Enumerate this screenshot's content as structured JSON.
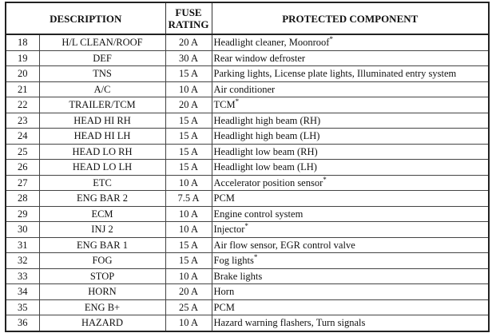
{
  "header": {
    "description": "DESCRIPTION",
    "rating": [
      "FUSE",
      "RATING"
    ],
    "component": "PROTECTED COMPONENT"
  },
  "rows": [
    {
      "no": 18,
      "description": "H/L CLEAN/ROOF",
      "rating": "20 A",
      "component": "Headlight cleaner, Moonroof",
      "note": "*"
    },
    {
      "no": 19,
      "description": "DEF",
      "rating": "30 A",
      "component": "Rear window defroster"
    },
    {
      "no": 20,
      "description": "TNS",
      "rating": "15 A",
      "component": "Parking lights, License plate lights, Illuminated entry system"
    },
    {
      "no": 21,
      "description": "A/C",
      "rating": "10 A",
      "component": "Air conditioner"
    },
    {
      "no": 22,
      "description": "TRAILER/TCM",
      "rating": "20 A",
      "component": "TCM",
      "note": "*"
    },
    {
      "no": 23,
      "description": "HEAD HI RH",
      "rating": "15 A",
      "component": "Headlight high beam (RH)"
    },
    {
      "no": 24,
      "description": "HEAD HI LH",
      "rating": "15 A",
      "component": "Headlight high beam (LH)"
    },
    {
      "no": 25,
      "description": "HEAD LO RH",
      "rating": "15 A",
      "component": "Headlight low beam (RH)"
    },
    {
      "no": 26,
      "description": "HEAD LO LH",
      "rating": "15 A",
      "component": "Headlight low beam (LH)"
    },
    {
      "no": 27,
      "description": "ETC",
      "rating": "10 A",
      "component": "Accelerator position sensor",
      "note": "*"
    },
    {
      "no": 28,
      "description": "ENG BAR 2",
      "rating": "7.5 A",
      "component": "PCM"
    },
    {
      "no": 29,
      "description": "ECM",
      "rating": "10 A",
      "component": "Engine control system"
    },
    {
      "no": 30,
      "description": "INJ 2",
      "rating": "10 A",
      "component": "Injector",
      "note": "*"
    },
    {
      "no": 31,
      "description": "ENG BAR 1",
      "rating": "15 A",
      "component": "Air flow sensor, EGR control valve"
    },
    {
      "no": 32,
      "description": "FOG",
      "rating": "15 A",
      "component": "Fog lights",
      "note": "*"
    },
    {
      "no": 33,
      "description": "STOP",
      "rating": "10 A",
      "component": "Brake lights"
    },
    {
      "no": 34,
      "description": "HORN",
      "rating": "20 A",
      "component": "Horn"
    },
    {
      "no": 35,
      "description": "ENG B+",
      "rating": "25 A",
      "component": "PCM"
    },
    {
      "no": 36,
      "description": "HAZARD",
      "rating": "10 A",
      "component": "Hazard warning flashers, Turn signals"
    }
  ]
}
